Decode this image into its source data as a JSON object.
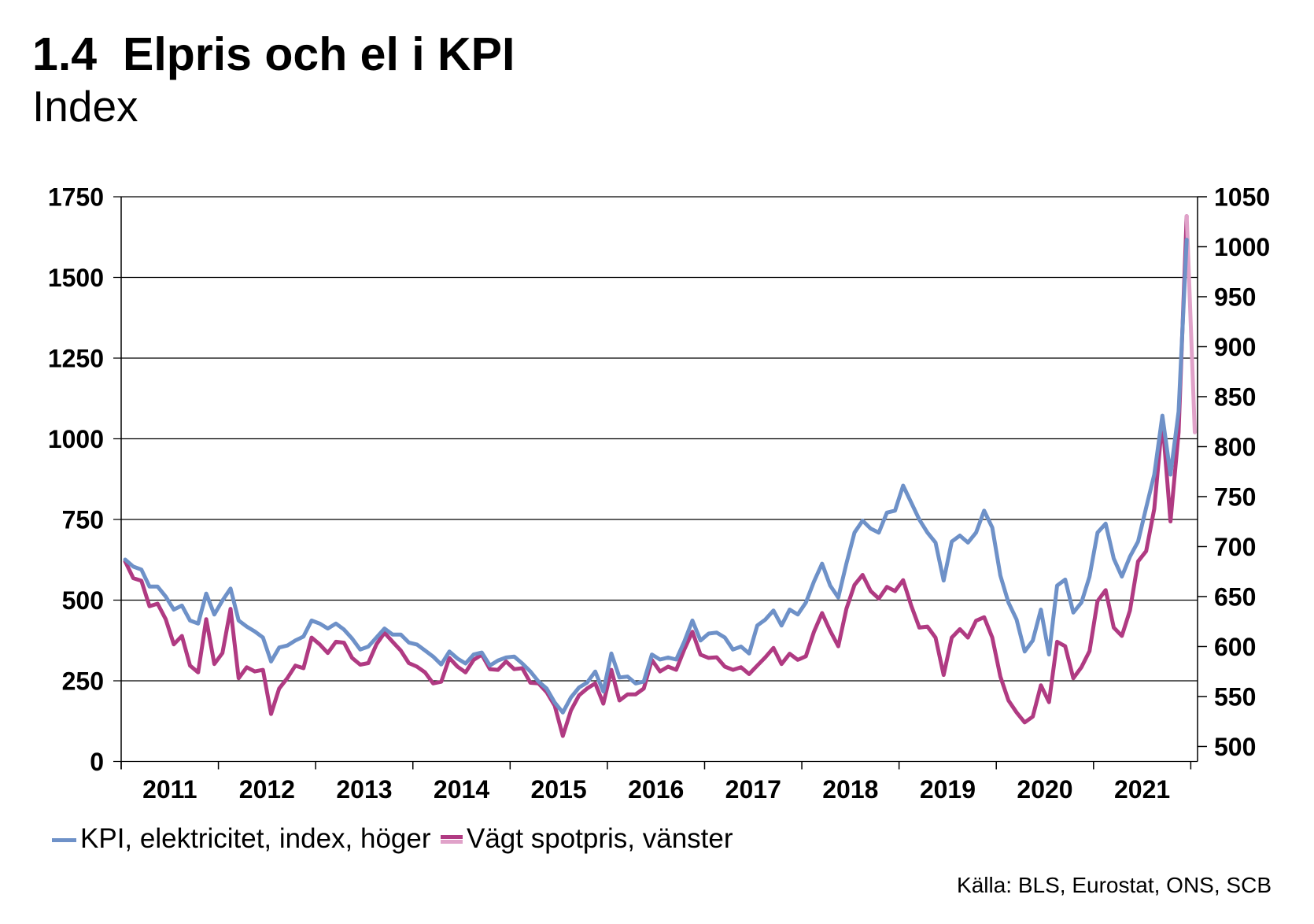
{
  "chart_data": {
    "type": "line",
    "figure_number": "1.4",
    "title": "Elpris och el i KPI",
    "subtitle": "Index",
    "source": "Källa: BLS, Eurostat, ONS, SCB",
    "legend_position": "bottom-left",
    "grid": true,
    "x_tick_labels": [
      "2011",
      "2012",
      "2013",
      "2014",
      "2015",
      "2016",
      "2017",
      "2018",
      "2019",
      "2020",
      "2021"
    ],
    "x": [
      "2011-01",
      "2011-02",
      "2011-03",
      "2011-04",
      "2011-05",
      "2011-06",
      "2011-07",
      "2011-08",
      "2011-09",
      "2011-10",
      "2011-11",
      "2011-12",
      "2012-01",
      "2012-02",
      "2012-03",
      "2012-04",
      "2012-05",
      "2012-06",
      "2012-07",
      "2012-08",
      "2012-09",
      "2012-10",
      "2012-11",
      "2012-12",
      "2013-01",
      "2013-02",
      "2013-03",
      "2013-04",
      "2013-05",
      "2013-06",
      "2013-07",
      "2013-08",
      "2013-09",
      "2013-10",
      "2013-11",
      "2013-12",
      "2014-01",
      "2014-02",
      "2014-03",
      "2014-04",
      "2014-05",
      "2014-06",
      "2014-07",
      "2014-08",
      "2014-09",
      "2014-10",
      "2014-11",
      "2014-12",
      "2015-01",
      "2015-02",
      "2015-03",
      "2015-04",
      "2015-05",
      "2015-06",
      "2015-07",
      "2015-08",
      "2015-09",
      "2015-10",
      "2015-11",
      "2015-12",
      "2016-01",
      "2016-02",
      "2016-03",
      "2016-04",
      "2016-05",
      "2016-06",
      "2016-07",
      "2016-08",
      "2016-09",
      "2016-10",
      "2016-11",
      "2016-12",
      "2017-01",
      "2017-02",
      "2017-03",
      "2017-04",
      "2017-05",
      "2017-06",
      "2017-07",
      "2017-08",
      "2017-09",
      "2017-10",
      "2017-11",
      "2017-12",
      "2018-01",
      "2018-02",
      "2018-03",
      "2018-04",
      "2018-05",
      "2018-06",
      "2018-07",
      "2018-08",
      "2018-09",
      "2018-10",
      "2018-11",
      "2018-12",
      "2019-01",
      "2019-02",
      "2019-03",
      "2019-04",
      "2019-05",
      "2019-06",
      "2019-07",
      "2019-08",
      "2019-09",
      "2019-10",
      "2019-11",
      "2019-12",
      "2020-01",
      "2020-02",
      "2020-03",
      "2020-04",
      "2020-05",
      "2020-06",
      "2020-07",
      "2020-08",
      "2020-09",
      "2020-10",
      "2020-11",
      "2020-12",
      "2021-01",
      "2021-02",
      "2021-03",
      "2021-04",
      "2021-05",
      "2021-06",
      "2021-07",
      "2021-08",
      "2021-09",
      "2021-10",
      "2021-11",
      "2021-12",
      "2022-01"
    ],
    "y_left": {
      "lim": [
        0,
        1750
      ],
      "ticks": [
        0,
        250,
        500,
        750,
        1000,
        1250,
        1500,
        1750
      ]
    },
    "y_right": {
      "lim": [
        485,
        1050
      ],
      "ticks": [
        500,
        550,
        600,
        650,
        700,
        750,
        800,
        850,
        900,
        950,
        1000,
        1050
      ]
    },
    "series": [
      {
        "name": "KPI, elektricitet, index, höger",
        "axis": "right",
        "color": "#6e91c8",
        "values": [
          687,
          680,
          677,
          660,
          660,
          650,
          637,
          641,
          626,
          623,
          653,
          632,
          646,
          658,
          626,
          620,
          615,
          609,
          585,
          599,
          601,
          606,
          610,
          626,
          623,
          618,
          623,
          617,
          608,
          597,
          600,
          609,
          618,
          612,
          612,
          604,
          602,
          596,
          590,
          582,
          595,
          588,
          583,
          592,
          594,
          581,
          586,
          589,
          590,
          583,
          575,
          565,
          558,
          544,
          534,
          549,
          559,
          564,
          575,
          555,
          593,
          569,
          570,
          563,
          565,
          592,
          587,
          589,
          587,
          605,
          626,
          606,
          613,
          614,
          609,
          597,
          600,
          593,
          621,
          627,
          636,
          621,
          637,
          632,
          644,
          665,
          683,
          661,
          649,
          683,
          714,
          726,
          718,
          714,
          734,
          736,
          761,
          744,
          727,
          714,
          704,
          666,
          705,
          711,
          704,
          714,
          736,
          719,
          671,
          644,
          627,
          595,
          606,
          637,
          592,
          661,
          667,
          634,
          644,
          670,
          714,
          723,
          688,
          670,
          690,
          705,
          739,
          772,
          831,
          772,
          835,
          1007,
          null
        ]
      },
      {
        "name": "Vägt spotpris, vänster",
        "axis": "left",
        "color": "#b03a82",
        "latest_color": "#e0a2c9",
        "values": [
          620,
          568,
          560,
          481,
          489,
          441,
          363,
          389,
          297,
          276,
          441,
          302,
          336,
          473,
          258,
          292,
          279,
          284,
          147,
          226,
          258,
          297,
          289,
          384,
          363,
          336,
          371,
          368,
          321,
          300,
          305,
          363,
          399,
          371,
          344,
          305,
          294,
          276,
          242,
          247,
          321,
          294,
          276,
          315,
          331,
          286,
          284,
          310,
          286,
          289,
          244,
          242,
          215,
          173,
          79,
          158,
          205,
          226,
          242,
          179,
          284,
          189,
          208,
          208,
          226,
          315,
          279,
          294,
          284,
          347,
          402,
          331,
          321,
          323,
          294,
          284,
          292,
          271,
          297,
          323,
          352,
          302,
          334,
          315,
          326,
          402,
          460,
          405,
          357,
          473,
          547,
          578,
          528,
          505,
          541,
          528,
          562,
          483,
          415,
          418,
          384,
          268,
          384,
          410,
          384,
          436,
          447,
          384,
          263,
          189,
          152,
          121,
          139,
          236,
          184,
          371,
          357,
          258,
          292,
          342,
          497,
          531,
          415,
          389,
          468,
          620,
          652,
          783,
          1059,
          744,
          1020,
          1690,
          1020
        ]
      }
    ]
  }
}
